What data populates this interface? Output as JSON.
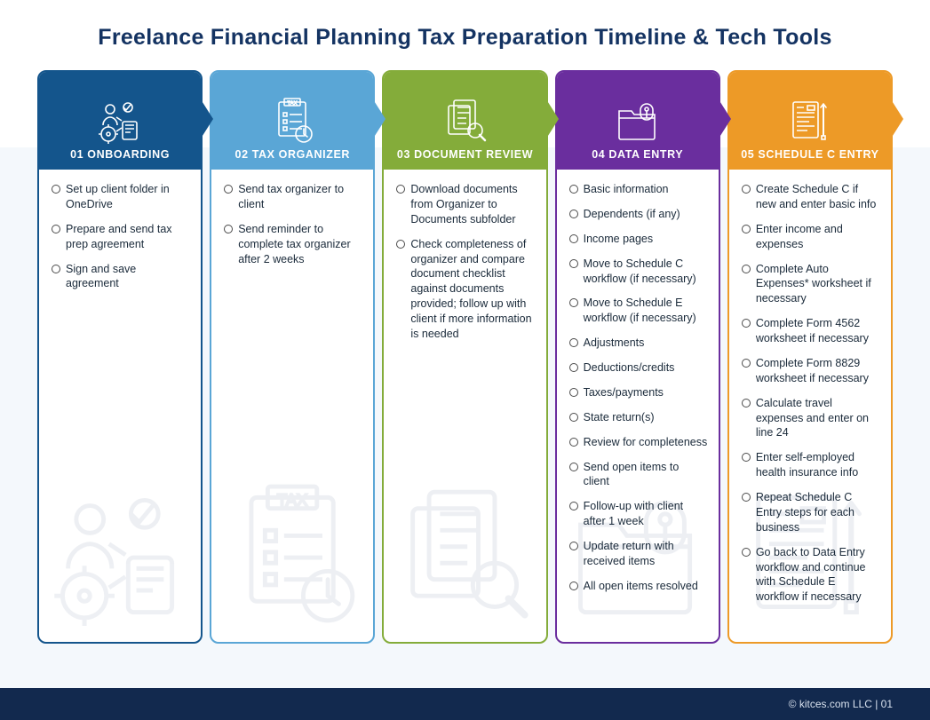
{
  "title": "Freelance Financial Planning Tax Preparation Timeline & Tech Tools",
  "footer": "© kitces.com LLC  |  01",
  "colors": {
    "title_color": "#143362",
    "bg_strip": "#f4f8fc",
    "footer_bg": "#12294e",
    "footer_text": "#d7e0ed",
    "body_text": "#1a2a3a"
  },
  "columns": [
    {
      "num": "01",
      "label": "ONBOARDING",
      "color": "#14558c",
      "icon": "onboarding",
      "items": [
        "Set up client folder in OneDrive",
        "Prepare and send tax prep agreement",
        "Sign and save agreement"
      ]
    },
    {
      "num": "02",
      "label": "TAX ORGANIZER",
      "color": "#5aa6d6",
      "icon": "tax-organizer",
      "items": [
        "Send tax organizer to client",
        "Send reminder to complete tax organizer after 2 weeks"
      ]
    },
    {
      "num": "03",
      "label": "DOCUMENT REVIEW",
      "color": "#84ac3a",
      "icon": "document-review",
      "items": [
        "Download documents from Organizer to Documents subfolder",
        "Check completeness of organizer and compare document checklist against documents provided; follow up with client if more information is needed"
      ]
    },
    {
      "num": "04",
      "label": "DATA ENTRY",
      "color": "#6a2e9e",
      "icon": "data-entry",
      "items": [
        "Basic information",
        "Dependents (if any)",
        "Income pages",
        "Move to Schedule C workflow (if necessary)",
        "Move to Schedule E workflow (if necessary)",
        "Adjustments",
        "Deductions/credits",
        "Taxes/payments",
        "State return(s)",
        "Review for completeness",
        "Send open items to client",
        "Follow-up with client after 1 week",
        "Update return with received items",
        "All open items resolved"
      ]
    },
    {
      "num": "05",
      "label": "SCHEDULE C ENTRY",
      "color": "#ed9a27",
      "icon": "schedule-c",
      "items": [
        "Create Schedule C if new and enter basic info",
        "Enter income and expenses",
        "Complete Auto Expenses* worksheet if necessary",
        "Complete Form 4562 worksheet if necessary",
        "Complete Form 8829 worksheet if necessary",
        "Calculate travel expenses and enter on line 24",
        "Enter self-employed health insurance info",
        "Repeat Schedule C Entry steps for each business",
        "Go back to Data Entry workflow and continue with Schedule E workflow if necessary"
      ]
    }
  ]
}
